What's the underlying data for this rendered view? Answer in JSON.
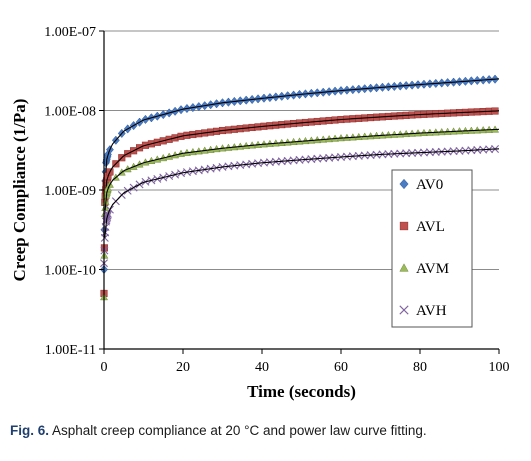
{
  "caption": {
    "label": "Fig. 6.",
    "text": "Asphalt creep compliance at 20 °C and power law curve fitting."
  },
  "chart_data": {
    "type": "scatter",
    "xlabel": "Time (seconds)",
    "ylabel": "Creep Compliance (1/Pa)",
    "xlim": [
      0,
      100
    ],
    "ylim": [
      1e-11,
      1e-07
    ],
    "y_scale": "log",
    "grid": "horizontal",
    "legend_position": "right",
    "x_ticks": [
      0,
      20,
      40,
      60,
      80,
      100
    ],
    "x_tick_labels": [
      "0",
      "20",
      "40",
      "60",
      "80",
      "100"
    ],
    "y_ticks": [
      1e-11,
      1e-10,
      1e-09,
      1e-08,
      1e-07
    ],
    "y_tick_labels": [
      "1.00E-11",
      "1.00E-10",
      "1.00E-09",
      "1.00E-08",
      "1.00E-07"
    ],
    "fit_curve": "power law",
    "fit_color": "#000000",
    "series": [
      {
        "name": "AV0",
        "marker": "diamond",
        "color": "#4a7cc4",
        "x": [
          0,
          0.2,
          0.5,
          1,
          2,
          5,
          10,
          20,
          30,
          40,
          50,
          60,
          70,
          80,
          90,
          100
        ],
        "y": [
          1e-10,
          1e-09,
          2.2e-09,
          2.8e-09,
          3.7e-09,
          5.5e-09,
          7.6e-09,
          1.04e-08,
          1.25e-08,
          1.42e-08,
          1.6e-08,
          1.78e-08,
          1.95e-08,
          2.12e-08,
          2.3e-08,
          2.5e-08
        ]
      },
      {
        "name": "AVL",
        "marker": "square",
        "color": "#c0504d",
        "x": [
          0,
          0.2,
          0.5,
          1,
          2,
          5,
          10,
          20,
          30,
          40,
          50,
          60,
          70,
          80,
          90,
          100
        ],
        "y": [
          5e-11,
          7e-10,
          1.2e-09,
          1.5e-09,
          1.9e-09,
          2.7e-09,
          3.6e-09,
          4.8e-09,
          5.6e-09,
          6.3e-09,
          7e-09,
          7.7e-09,
          8.3e-09,
          8.9e-09,
          9.4e-09,
          9.9e-09
        ]
      },
      {
        "name": "AVM",
        "marker": "triangle",
        "color": "#9bbb59",
        "x": [
          0,
          0.2,
          0.5,
          1,
          2,
          5,
          10,
          20,
          30,
          40,
          50,
          60,
          70,
          80,
          90,
          100
        ],
        "y": [
          4.5e-11,
          5e-10,
          8.5e-10,
          1.05e-09,
          1.3e-09,
          1.75e-09,
          2.2e-09,
          2.9e-09,
          3.35e-09,
          3.75e-09,
          4.1e-09,
          4.5e-09,
          4.85e-09,
          5.2e-09,
          5.5e-09,
          5.8e-09
        ]
      },
      {
        "name": "AVH",
        "marker": "x",
        "color": "#8064a2",
        "x": [
          0,
          0.2,
          0.5,
          1,
          2,
          5,
          10,
          20,
          30,
          40,
          50,
          60,
          70,
          80,
          90,
          100
        ],
        "y": [
          1.2e-10,
          2.5e-10,
          4e-10,
          5e-10,
          6.4e-10,
          9.2e-10,
          1.25e-09,
          1.65e-09,
          1.95e-09,
          2.2e-09,
          2.4e-09,
          2.6e-09,
          2.8e-09,
          2.95e-09,
          3.1e-09,
          3.3e-09
        ]
      }
    ]
  }
}
